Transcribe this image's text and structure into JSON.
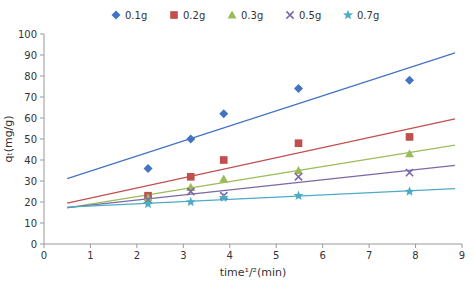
{
  "chart_data": {
    "type": "scatter",
    "x_label": "time¹/²(min)",
    "y_label": "qₜ(mg/g)",
    "background_color": "#ffffff",
    "xlim": [
      0,
      9
    ],
    "ylim": [
      0,
      100
    ],
    "xticks": [
      0,
      1,
      2,
      3,
      4,
      5,
      6,
      7,
      8,
      9
    ],
    "yticks": [
      0,
      10,
      20,
      30,
      40,
      50,
      60,
      70,
      80,
      90,
      100
    ],
    "grid": false,
    "legend": "top",
    "trend_x": [
      0.5,
      8.85
    ],
    "series": [
      {
        "name": "0.1g",
        "color": "#4472C4",
        "marker": "diamond",
        "x": [
          2.24,
          3.16,
          3.87,
          5.48,
          7.87
        ],
        "values": [
          36,
          50,
          62,
          74,
          78
        ],
        "trend_values": [
          31.12,
          91.04
        ]
      },
      {
        "name": "0.2g",
        "color": "#C0504D",
        "marker": "square",
        "x": [
          2.24,
          3.16,
          3.87,
          5.48,
          7.87
        ],
        "values": [
          23,
          32,
          40,
          48,
          51
        ],
        "trend_values": [
          19.48,
          59.57
        ]
      },
      {
        "name": "0.3g",
        "color": "#9BBB59",
        "marker": "triangle",
        "x": [
          2.24,
          3.16,
          3.87,
          5.48,
          7.87
        ],
        "values": [
          22,
          27,
          31,
          35,
          43
        ],
        "trend_values": [
          17.24,
          47.04
        ]
      },
      {
        "name": "0.5g",
        "color": "#7B68A6",
        "marker": "x",
        "x": [
          2.24,
          3.16,
          3.87,
          5.48,
          7.87
        ],
        "values": [
          21,
          25,
          23,
          32,
          34
        ],
        "trend_values": [
          17.31,
          37.42
        ]
      },
      {
        "name": "0.7g",
        "color": "#4BACC6",
        "marker": "star",
        "x": [
          2.24,
          3.16,
          3.87,
          5.48,
          7.87
        ],
        "values": [
          19,
          20,
          22,
          23,
          25
        ],
        "trend_values": [
          17.58,
          26.34
        ]
      }
    ]
  }
}
